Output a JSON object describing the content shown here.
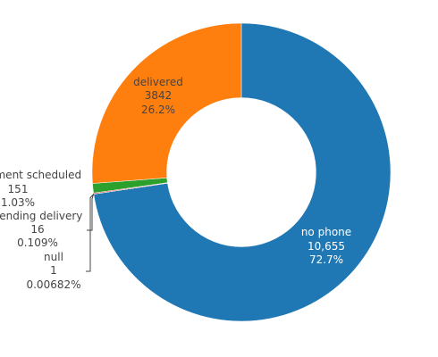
{
  "chart_data": {
    "type": "pie",
    "hole": 0.5,
    "title": "",
    "slices": [
      {
        "label": "no phone",
        "value": 10655,
        "value_text": "10,655",
        "percent_text": "72.7%",
        "color": "#1f77b4"
      },
      {
        "label": "null",
        "value": 1,
        "value_text": "1",
        "percent_text": "0.00682%",
        "color": "#9467bd"
      },
      {
        "label": "pending delivery",
        "value": 16,
        "value_text": "16",
        "percent_text": "0.109%",
        "color": "#d62728"
      },
      {
        "label": "appointment scheduled",
        "value": 151,
        "value_text": "151",
        "percent_text": "1.03%",
        "color": "#2ca02c"
      },
      {
        "label": "delivered",
        "value": 3842,
        "value_text": "3842",
        "percent_text": "26.2%",
        "color": "#ff7f0e"
      }
    ]
  }
}
